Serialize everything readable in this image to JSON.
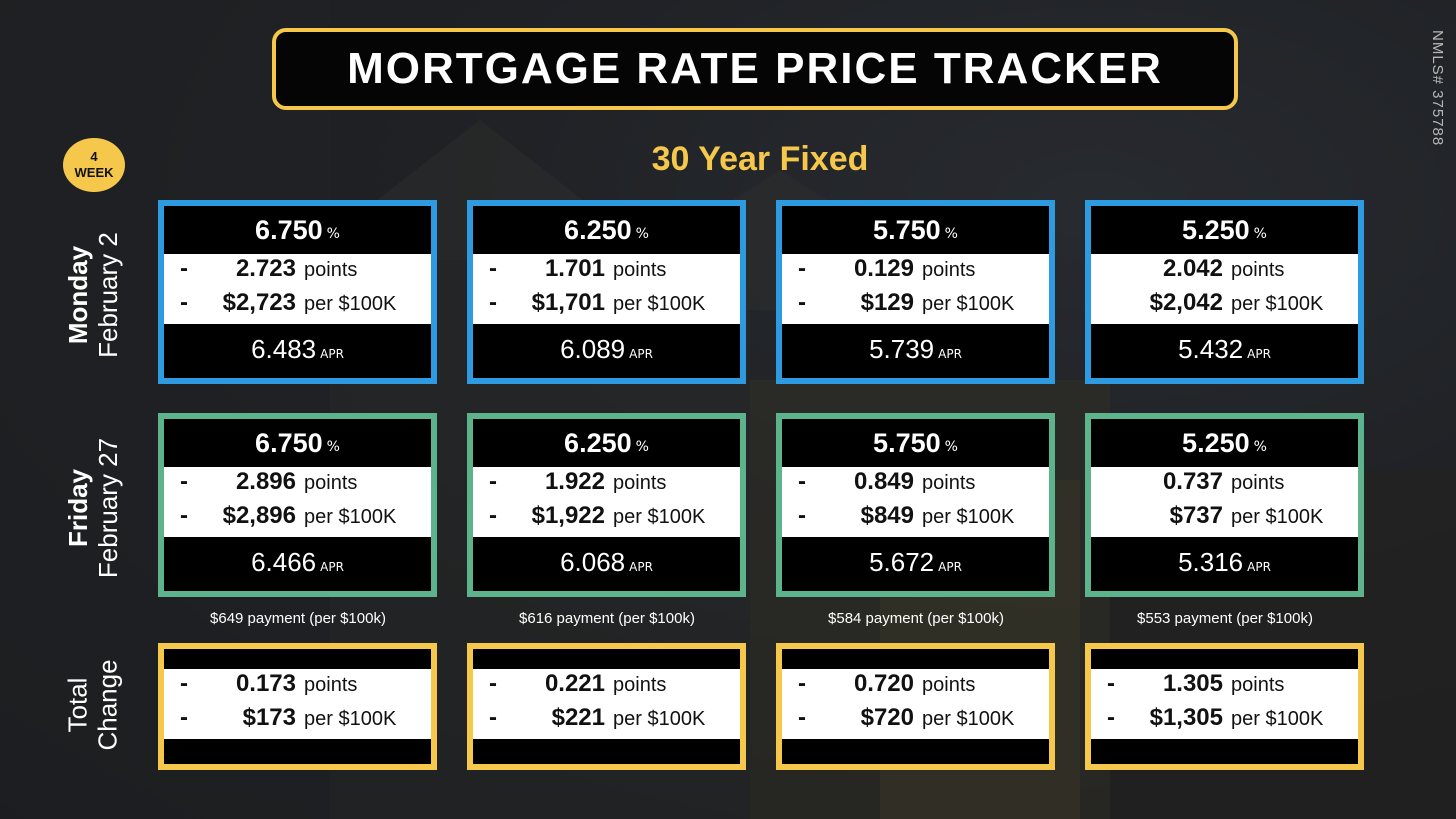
{
  "title": "MORTGAGE RATE PRICE TRACKER",
  "subtitle": "30 Year Fixed",
  "nmls": "NMLS# 375788",
  "badge": {
    "line1": "4",
    "line2": "WEEK"
  },
  "rows": {
    "monday": {
      "day": "Monday",
      "date": "February 2"
    },
    "friday": {
      "day": "Friday",
      "date": "February 27"
    },
    "total": {
      "line1": "Total",
      "line2": "Change"
    }
  },
  "labels": {
    "pct": "%",
    "apr": "APR",
    "points": "points",
    "per": "per $100K"
  },
  "monday": [
    {
      "rate": "6.750",
      "sign1": "-",
      "points": "2.723",
      "sign2": "-",
      "dollars": "$2,723",
      "apr": "6.483"
    },
    {
      "rate": "6.250",
      "sign1": "-",
      "points": "1.701",
      "sign2": "-",
      "dollars": "$1,701",
      "apr": "6.089"
    },
    {
      "rate": "5.750",
      "sign1": "-",
      "points": "0.129",
      "sign2": "-",
      "dollars": "$129",
      "apr": "5.739"
    },
    {
      "rate": "5.250",
      "sign1": "",
      "points": "2.042",
      "sign2": "",
      "dollars": "$2,042",
      "apr": "5.432"
    }
  ],
  "friday": [
    {
      "rate": "6.750",
      "sign1": "-",
      "points": "2.896",
      "sign2": "-",
      "dollars": "$2,896",
      "apr": "6.466"
    },
    {
      "rate": "6.250",
      "sign1": "-",
      "points": "1.922",
      "sign2": "-",
      "dollars": "$1,922",
      "apr": "6.068"
    },
    {
      "rate": "5.750",
      "sign1": "-",
      "points": "0.849",
      "sign2": "-",
      "dollars": "$849",
      "apr": "5.672"
    },
    {
      "rate": "5.250",
      "sign1": "",
      "points": "0.737",
      "sign2": "",
      "dollars": "$737",
      "apr": "5.316"
    }
  ],
  "payments": [
    "$649 payment (per $100k)",
    "$616 payment (per $100k)",
    "$584 payment (per $100k)",
    "$553 payment (per $100k)"
  ],
  "total": [
    {
      "sign1": "-",
      "points": "0.173",
      "sign2": "-",
      "dollars": "$173"
    },
    {
      "sign1": "-",
      "points": "0.221",
      "sign2": "-",
      "dollars": "$221"
    },
    {
      "sign1": "-",
      "points": "0.720",
      "sign2": "-",
      "dollars": "$720"
    },
    {
      "sign1": "-",
      "points": "1.305",
      "sign2": "-",
      "dollars": "$1,305"
    }
  ]
}
